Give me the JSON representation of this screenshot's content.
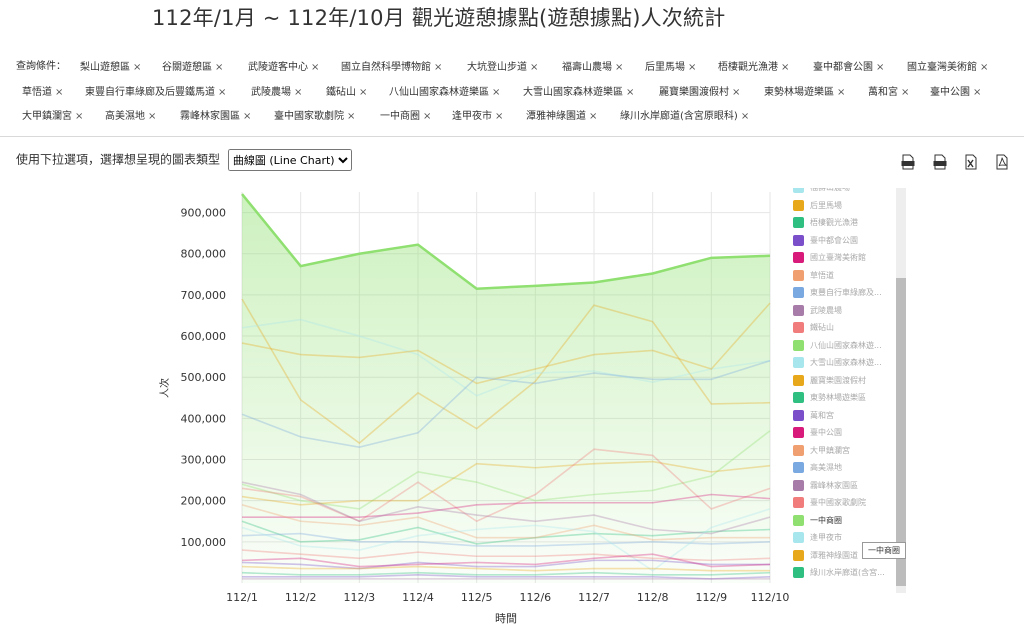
{
  "title": "112年/1月 ~ 112年/10月 觀光遊憩據點(遊憩據點)人次統計",
  "filters": {
    "label": "查詢條件：",
    "close_glyph": "×",
    "items": [
      "梨山遊憩區",
      "谷關遊憩區",
      "武陵遊客中心",
      "國立自然科學博物館",
      "大坑登山步道",
      "福壽山農場",
      "后里馬場",
      "梧棲觀光漁港",
      "臺中都會公園",
      "國立臺灣美術館",
      "草悟道",
      "東豐自行車綠廊及后豐鐵馬道",
      "武陵農場",
      "鐵砧山",
      "八仙山國家森林遊樂區",
      "大雪山國家森林遊樂區",
      "麗寶樂園渡假村",
      "東勢林場遊樂區",
      "萬和宮",
      "臺中公園",
      "大甲鎮瀾宮",
      "高美濕地",
      "霧峰林家園區",
      "臺中國家歌劇院",
      "一中商圈",
      "逢甲夜市",
      "潭雅神綠園道",
      "綠川水岸廊道(含宮原眼科)"
    ]
  },
  "chart_type": {
    "label": "使用下拉選項，選擇想呈現的圖表類型",
    "selected": "曲線圖 (Line Chart)"
  },
  "downloads": [
    "svg",
    "csv",
    "xls",
    "pdf"
  ],
  "legend": {
    "items": [
      {
        "label": "福壽山農場",
        "color": "#a8e6ee"
      },
      {
        "label": "后里馬場",
        "color": "#e8a81c"
      },
      {
        "label": "梧棲觀光漁港",
        "color": "#2fbf80"
      },
      {
        "label": "臺中都會公園",
        "color": "#7b4fc9"
      },
      {
        "label": "國立臺灣美術館",
        "color": "#d81b7a"
      },
      {
        "label": "草悟道",
        "color": "#f0a070"
      },
      {
        "label": "東豐自行車綠廊及...",
        "color": "#7aa8e0"
      },
      {
        "label": "武陵農場",
        "color": "#a87ca8"
      },
      {
        "label": "鐵砧山",
        "color": "#f07c7c"
      },
      {
        "label": "八仙山國家森林遊...",
        "color": "#8fe070"
      },
      {
        "label": "大雪山國家森林遊...",
        "color": "#a8e6ee"
      },
      {
        "label": "麗寶樂園渡假村",
        "color": "#e8a81c"
      },
      {
        "label": "東勢林場遊樂區",
        "color": "#2fbf80"
      },
      {
        "label": "萬和宮",
        "color": "#7b4fc9"
      },
      {
        "label": "臺中公園",
        "color": "#d81b7a"
      },
      {
        "label": "大甲鎮瀾宮",
        "color": "#f0a070"
      },
      {
        "label": "高美濕地",
        "color": "#7aa8e0"
      },
      {
        "label": "霧峰林家園區",
        "color": "#a87ca8"
      },
      {
        "label": "臺中國家歌劇院",
        "color": "#f07c7c"
      },
      {
        "label": "一中商圈",
        "color": "#8fe070"
      },
      {
        "label": "逢甲夜市",
        "color": "#a8e6ee"
      },
      {
        "label": "潭雅神綠園道",
        "color": "#e8a81c"
      },
      {
        "label": "綠川水岸廊道(含宮...",
        "color": "#2fbf80"
      }
    ]
  },
  "tooltip": "一中商圈",
  "chart_data": {
    "type": "line",
    "x": [
      "112/1",
      "112/2",
      "112/3",
      "112/4",
      "112/5",
      "112/6",
      "112/7",
      "112/8",
      "112/9",
      "112/10"
    ],
    "xlabel": "時間",
    "ylabel": "人次",
    "ylim": [
      0,
      950000
    ],
    "yticks": [
      100000,
      200000,
      300000,
      400000,
      500000,
      600000,
      700000,
      800000,
      900000
    ],
    "ytick_labels": [
      "100,000",
      "200,000",
      "300,000",
      "400,000",
      "500,000",
      "600,000",
      "700,000",
      "800,000",
      "900,000"
    ],
    "grid": true,
    "highlight": {
      "name": "一中商圈",
      "color": "#8fe070",
      "values": [
        945000,
        770000,
        800000,
        822000,
        715000,
        722000,
        730000,
        752000,
        790000,
        795000
      ]
    },
    "series": [
      {
        "color": "#e8a81c",
        "values": [
          690000,
          445000,
          340000,
          462000,
          375000,
          490000,
          675000,
          635000,
          435000,
          438000
        ]
      },
      {
        "color": "#a8e6ee",
        "values": [
          620000,
          640000,
          600000,
          555000,
          455000,
          510000,
          515000,
          488000,
          520000,
          540000
        ]
      },
      {
        "color": "#e8a81c",
        "values": [
          583000,
          555000,
          548000,
          565000,
          485000,
          520000,
          555000,
          565000,
          520000,
          680000
        ]
      },
      {
        "color": "#7aa8e0",
        "values": [
          410000,
          355000,
          330000,
          365000,
          500000,
          485000,
          510000,
          495000,
          495000,
          540000
        ]
      },
      {
        "color": "#8fe070",
        "values": [
          240000,
          200000,
          180000,
          270000,
          245000,
          200000,
          215000,
          225000,
          260000,
          370000
        ]
      },
      {
        "color": "#e8a81c",
        "values": [
          210000,
          190000,
          200000,
          200000,
          290000,
          280000,
          290000,
          295000,
          270000,
          285000
        ]
      },
      {
        "color": "#f07c7c",
        "values": [
          230000,
          210000,
          150000,
          245000,
          150000,
          215000,
          325000,
          310000,
          180000,
          230000
        ]
      },
      {
        "color": "#d81b7a",
        "values": [
          160000,
          160000,
          160000,
          170000,
          190000,
          195000,
          195000,
          195000,
          215000,
          205000
        ]
      },
      {
        "color": "#2fbf80",
        "values": [
          150000,
          100000,
          105000,
          135000,
          95000,
          110000,
          120000,
          115000,
          125000,
          130000
        ]
      },
      {
        "color": "#a87ca8",
        "values": [
          245000,
          215000,
          150000,
          185000,
          165000,
          150000,
          165000,
          130000,
          120000,
          160000
        ]
      },
      {
        "color": "#f0a070",
        "values": [
          190000,
          150000,
          140000,
          160000,
          110000,
          110000,
          140000,
          105000,
          110000,
          110000
        ]
      },
      {
        "color": "#7aa8e0",
        "values": [
          115000,
          120000,
          100000,
          100000,
          90000,
          90000,
          95000,
          100000,
          95000,
          100000
        ]
      },
      {
        "color": "#a8e6ee",
        "values": [
          135000,
          90000,
          80000,
          115000,
          130000,
          140000,
          125000,
          30000,
          135000,
          180000
        ]
      },
      {
        "color": "#f07c7c",
        "values": [
          80000,
          70000,
          60000,
          75000,
          65000,
          65000,
          70000,
          60000,
          55000,
          60000
        ]
      },
      {
        "color": "#7b4fc9",
        "values": [
          50000,
          45000,
          35000,
          50000,
          40000,
          40000,
          55000,
          55000,
          45000,
          45000
        ]
      },
      {
        "color": "#e8a81c",
        "values": [
          40000,
          35000,
          35000,
          40000,
          35000,
          30000,
          35000,
          35000,
          30000,
          30000
        ]
      },
      {
        "color": "#2fbf80",
        "values": [
          25000,
          20000,
          20000,
          25000,
          20000,
          20000,
          25000,
          20000,
          20000,
          25000
        ]
      },
      {
        "color": "#d81b7a",
        "values": [
          55000,
          60000,
          40000,
          45000,
          50000,
          45000,
          60000,
          70000,
          40000,
          45000
        ]
      },
      {
        "color": "#7b4fc9",
        "values": [
          15000,
          15000,
          15000,
          20000,
          15000,
          15000,
          15000,
          15000,
          10000,
          15000
        ]
      },
      {
        "color": "#a87ca8",
        "values": [
          10000,
          10000,
          10000,
          10000,
          10000,
          10000,
          10000,
          10000,
          10000,
          10000
        ]
      }
    ]
  }
}
